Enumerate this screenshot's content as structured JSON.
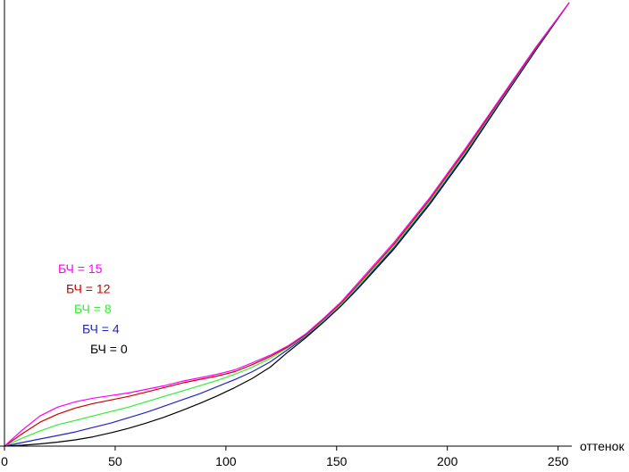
{
  "chart_data": {
    "type": "line",
    "title": "",
    "xlabel": "оттенок",
    "ylabel": "",
    "xlim": [
      0,
      255
    ],
    "ylim": [
      0,
      1
    ],
    "xticks": [
      0,
      50,
      100,
      150,
      200,
      250
    ],
    "grid": false,
    "legend_placement": "left",
    "series": [
      {
        "name": "БЧ = 15",
        "color": "#ff00ff",
        "x": [
          0,
          8,
          16,
          24,
          32,
          40,
          48,
          56,
          64,
          72,
          80,
          88,
          96,
          104,
          112,
          120,
          128,
          136,
          144,
          152,
          160,
          176,
          192,
          208,
          224,
          240,
          255
        ],
        "y": [
          0.0,
          0.036,
          0.068,
          0.088,
          0.1,
          0.108,
          0.114,
          0.12,
          0.128,
          0.136,
          0.146,
          0.154,
          0.162,
          0.172,
          0.188,
          0.205,
          0.226,
          0.253,
          0.288,
          0.325,
          0.37,
          0.46,
          0.56,
          0.67,
          0.785,
          0.9,
          1.0
        ]
      },
      {
        "name": "БЧ = 12",
        "color": "#cc0000",
        "x": [
          0,
          8,
          16,
          24,
          32,
          40,
          48,
          56,
          64,
          72,
          80,
          88,
          96,
          104,
          112,
          120,
          128,
          136,
          144,
          152,
          160,
          176,
          192,
          208,
          224,
          240,
          255
        ],
        "y": [
          0.0,
          0.028,
          0.054,
          0.072,
          0.086,
          0.096,
          0.104,
          0.112,
          0.122,
          0.132,
          0.142,
          0.15,
          0.158,
          0.168,
          0.184,
          0.202,
          0.224,
          0.251,
          0.286,
          0.323,
          0.366,
          0.456,
          0.556,
          0.666,
          0.782,
          0.898,
          1.0
        ]
      },
      {
        "name": "БЧ = 8",
        "color": "#33ee33",
        "x": [
          0,
          8,
          16,
          24,
          32,
          40,
          48,
          56,
          64,
          72,
          80,
          88,
          96,
          104,
          112,
          120,
          128,
          136,
          144,
          152,
          160,
          176,
          192,
          208,
          224,
          240,
          255
        ],
        "y": [
          0.0,
          0.018,
          0.034,
          0.048,
          0.058,
          0.068,
          0.078,
          0.088,
          0.1,
          0.112,
          0.124,
          0.136,
          0.148,
          0.162,
          0.178,
          0.198,
          0.222,
          0.249,
          0.283,
          0.32,
          0.362,
          0.452,
          0.552,
          0.662,
          0.78,
          0.897,
          1.0
        ]
      },
      {
        "name": "БЧ = 4",
        "color": "#2222cc",
        "x": [
          0,
          8,
          16,
          24,
          32,
          40,
          48,
          56,
          64,
          72,
          80,
          88,
          96,
          104,
          112,
          120,
          128,
          136,
          144,
          152,
          160,
          176,
          192,
          208,
          224,
          240,
          255
        ],
        "y": [
          0.0,
          0.008,
          0.016,
          0.024,
          0.032,
          0.042,
          0.052,
          0.064,
          0.076,
          0.09,
          0.104,
          0.118,
          0.134,
          0.15,
          0.168,
          0.19,
          0.218,
          0.247,
          0.281,
          0.318,
          0.36,
          0.448,
          0.548,
          0.658,
          0.777,
          0.895,
          1.0
        ]
      },
      {
        "name": "БЧ = 0",
        "color": "#000000",
        "x": [
          0,
          8,
          16,
          24,
          32,
          40,
          48,
          56,
          64,
          72,
          80,
          88,
          96,
          104,
          112,
          120,
          128,
          136,
          144,
          152,
          160,
          176,
          192,
          208,
          224,
          240,
          255
        ],
        "y": [
          0.0,
          0.002,
          0.005,
          0.009,
          0.014,
          0.021,
          0.03,
          0.04,
          0.052,
          0.065,
          0.08,
          0.096,
          0.113,
          0.132,
          0.153,
          0.178,
          0.212,
          0.244,
          0.279,
          0.316,
          0.357,
          0.445,
          0.545,
          0.655,
          0.775,
          0.893,
          1.0
        ]
      }
    ]
  }
}
